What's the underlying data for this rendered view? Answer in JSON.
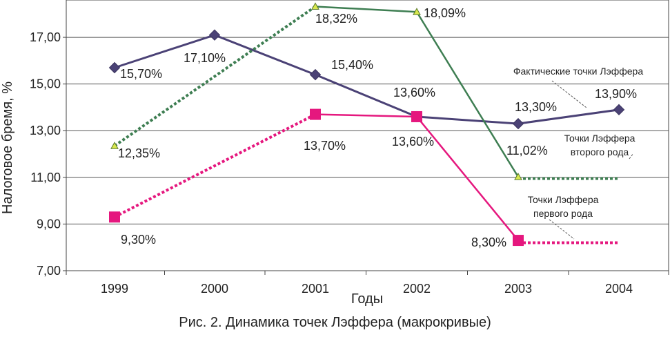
{
  "chart_data": {
    "type": "line",
    "categories": [
      "1999",
      "2000",
      "2001",
      "2002",
      "2003",
      "2004"
    ],
    "ylabel": "Налоговое бремя, %",
    "xlabel": "Годы",
    "ylim": [
      7,
      18.6
    ],
    "yticks": [
      7,
      9,
      11,
      13,
      15,
      17
    ],
    "ytick_labels": [
      "7,00",
      "9,00",
      "11,00",
      "13,00",
      "15,00",
      "17,00"
    ],
    "grid": true,
    "series": [
      {
        "name": "Фактические точки Лэффера",
        "color": "#4b4276",
        "marker": "diamond",
        "style": "solid",
        "x": [
          0,
          1,
          2,
          3,
          4,
          5
        ],
        "values": [
          15.7,
          17.1,
          15.4,
          13.6,
          13.3,
          13.9
        ],
        "labels": [
          "15,70%",
          "17,10%",
          "15,40%",
          "13,60%",
          "13,30%",
          "13,90%"
        ]
      },
      {
        "name": "Точки Лэффера второго рода",
        "color": "#3e7e52",
        "marker": "triangle",
        "marker_fill": "#d8e84e",
        "points": [
          {
            "x": 0,
            "y": 12.35,
            "label": "12,35%"
          },
          {
            "x": 2,
            "y": 18.32,
            "label": "18,32%"
          },
          {
            "x": 3,
            "y": 18.09,
            "label": "18,09%"
          },
          {
            "x": 4,
            "y": 11.02,
            "label": "11,02%"
          }
        ],
        "segments": [
          {
            "from": [
              0,
              12.35
            ],
            "to": [
              2,
              18.32
            ],
            "style": "dotted"
          },
          {
            "from": [
              2,
              18.32
            ],
            "to": [
              3,
              18.09
            ],
            "style": "solid"
          },
          {
            "from": [
              3,
              18.09
            ],
            "to": [
              4,
              11.02
            ],
            "style": "solid"
          },
          {
            "from": [
              4,
              10.95
            ],
            "to": [
              5,
              10.95
            ],
            "style": "dotted"
          }
        ]
      },
      {
        "name": "Точки Лэффера первого рода",
        "color": "#e5177e",
        "marker": "square",
        "points": [
          {
            "x": 0,
            "y": 9.3,
            "label": "9,30%"
          },
          {
            "x": 2,
            "y": 13.7,
            "label": "13,70%"
          },
          {
            "x": 3,
            "y": 13.6,
            "label": "13,60%"
          },
          {
            "x": 4,
            "y": 8.3,
            "label": "8,30%"
          }
        ],
        "segments": [
          {
            "from": [
              0,
              9.3
            ],
            "to": [
              2,
              13.7
            ],
            "style": "dotted"
          },
          {
            "from": [
              2,
              13.7
            ],
            "to": [
              3,
              13.6
            ],
            "style": "solid"
          },
          {
            "from": [
              3,
              13.6
            ],
            "to": [
              4,
              8.3
            ],
            "style": "solid"
          },
          {
            "from": [
              4,
              8.2
            ],
            "to": [
              5,
              8.2
            ],
            "style": "dotted"
          }
        ]
      }
    ],
    "annotations": {
      "actual": {
        "lines": [
          "Фактические точки Лэффера"
        ]
      },
      "second": {
        "lines": [
          "Точки Лэффера",
          "второго рода"
        ]
      },
      "first": {
        "lines": [
          "Точки Лэффера",
          "первого рода"
        ]
      }
    }
  },
  "caption": "Рис. 2. Динамика точек Лэффера (макрокривые)"
}
